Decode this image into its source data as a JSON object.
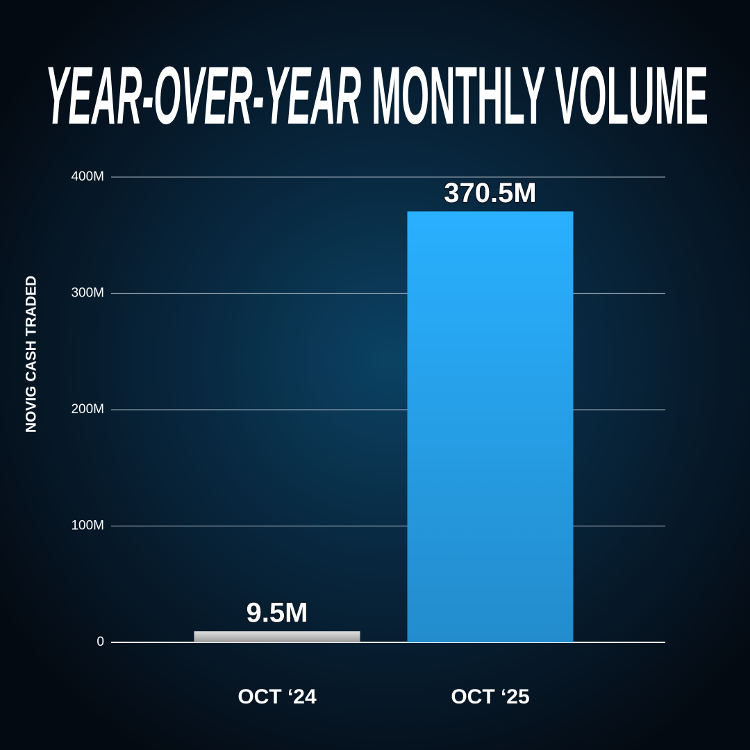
{
  "chart_data": {
    "type": "bar",
    "title_parts": [
      "YEAR-OVER-YEAR",
      "MONTHLY VOLUME"
    ],
    "title_colors": [
      "#26a9f5",
      "#ffffff"
    ],
    "y_label": "NOVIG CASH TRADED",
    "categories": [
      "OCT ‘24",
      "OCT ‘25"
    ],
    "values": [
      9500000,
      370500000
    ],
    "value_labels": [
      "9.5M",
      "370.5M"
    ],
    "colors": [
      "#c4c4c4",
      "#29abf6"
    ],
    "ylim": [
      0,
      400000000
    ],
    "yticks": [
      0,
      {
        "value": 100000000,
        "label": "100M"
      },
      {
        "value": 200000000,
        "label": "200M"
      },
      {
        "value": 300000000,
        "label": "300M"
      },
      {
        "value": 400000000,
        "label": "400M"
      }
    ],
    "grid": true
  }
}
